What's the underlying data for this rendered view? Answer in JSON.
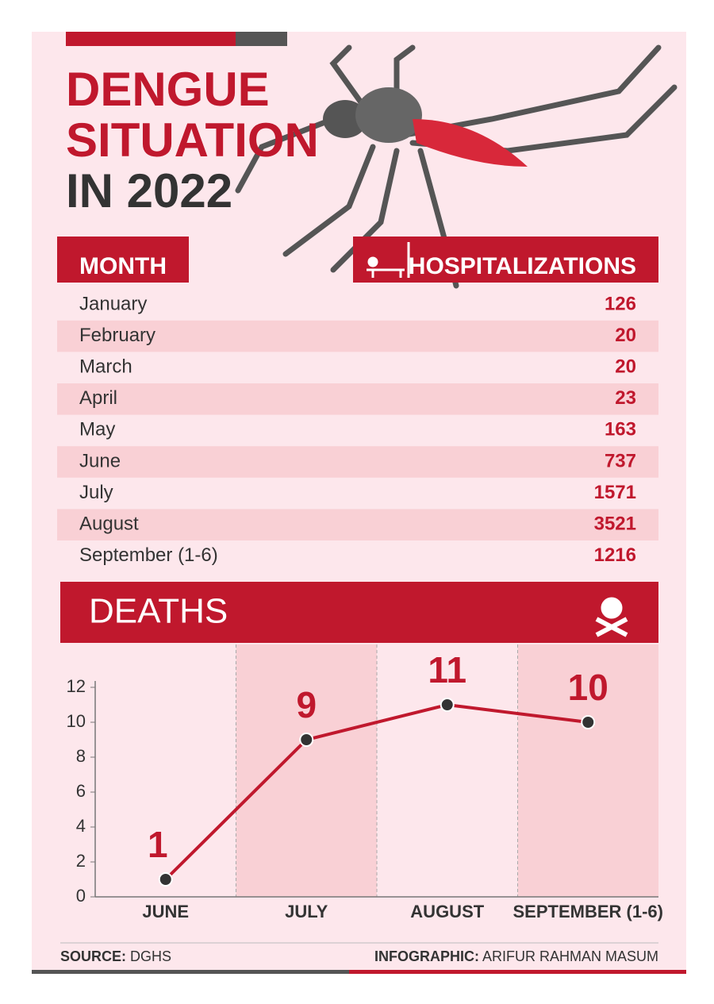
{
  "header": {
    "title_lines": [
      "DENGUE",
      "SITUATION",
      "IN 2022"
    ]
  },
  "table": {
    "columns": [
      "MONTH",
      "HOSPITALIZATIONS"
    ],
    "rows": [
      [
        "January",
        126
      ],
      [
        "February",
        20
      ],
      [
        "March",
        20
      ],
      [
        "April",
        23
      ],
      [
        "May",
        163
      ],
      [
        "June",
        737
      ],
      [
        "July",
        1571
      ],
      [
        "August",
        3521
      ],
      [
        "September (1-6)",
        1216
      ]
    ]
  },
  "chart_data": {
    "type": "line",
    "title": "DEATHS",
    "categories": [
      "JUNE",
      "JULY",
      "AUGUST",
      "SEPTEMBER (1-6)"
    ],
    "values": [
      1,
      9,
      11,
      10
    ],
    "color": "#c0182d",
    "ylim": [
      0,
      12
    ],
    "yticks": [
      0,
      2,
      4,
      6,
      8,
      10,
      12
    ]
  },
  "footer": {
    "source_label": "SOURCE:",
    "source": "DGHS",
    "credit_label": "INFOGRAPHIC:",
    "credit": "ARIFUR RAHMAN MASUM"
  }
}
